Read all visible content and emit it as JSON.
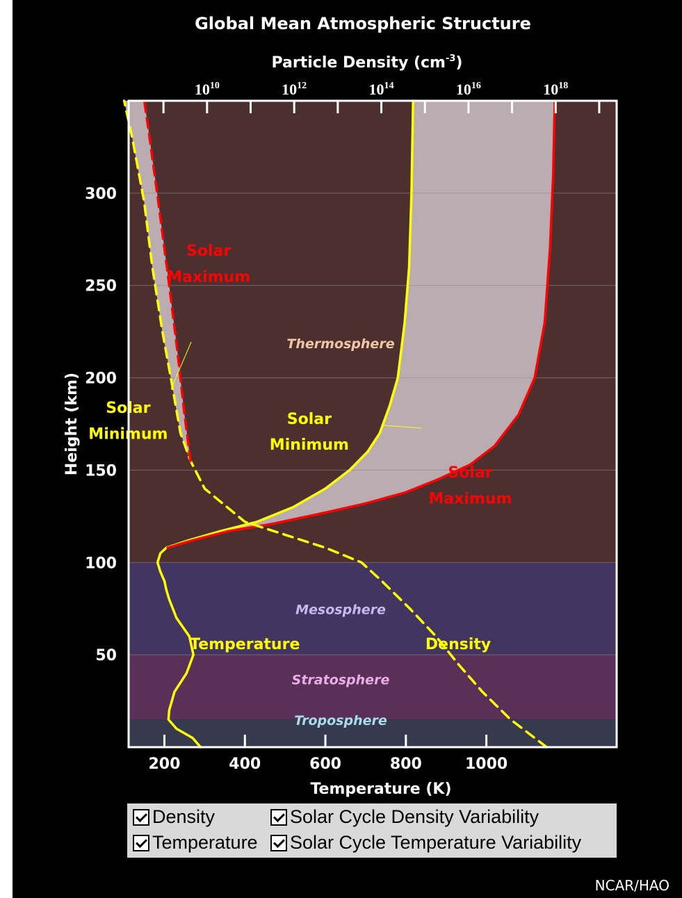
{
  "chart_data": {
    "type": "line",
    "title": "Global Mean Atmospheric Structure",
    "x_top_label": "Particle Density (cm",
    "x_top_label_sup": "-3",
    "x_top_label_end": ")",
    "x_top_ticks": [
      {
        "base": "10",
        "exp": "10",
        "value": 10
      },
      {
        "base": "10",
        "exp": "12",
        "value": 12
      },
      {
        "base": "10",
        "exp": "14",
        "value": 14
      },
      {
        "base": "10",
        "exp": "16",
        "value": 16
      },
      {
        "base": "10",
        "exp": "18",
        "value": 18
      }
    ],
    "x_top_scale": "log",
    "x_top_range_log10": [
      8.2,
      19.4
    ],
    "xlabel": "Temperature (K)",
    "xlim": [
      0,
      1200
    ],
    "x_ticks": [
      200,
      400,
      600,
      800,
      1000
    ],
    "ylabel": "Height (km)",
    "ylim": [
      0,
      350
    ],
    "y_ticks": [
      50,
      100,
      150,
      200,
      250,
      300
    ],
    "gridlines_y": [
      50,
      100,
      150,
      200,
      250,
      300
    ],
    "layers": [
      {
        "name": "Troposphere",
        "from": 0,
        "to": 15,
        "color": "#353a4e",
        "label_color": "#a9dcea",
        "label_at": 12
      },
      {
        "name": "Stratosphere",
        "from": 15,
        "to": 50,
        "color": "#5a2f58",
        "label_color": "#e9aee6",
        "label_at": 34
      },
      {
        "name": "Mesosphere",
        "from": 50,
        "to": 100,
        "color": "#42355f",
        "label_color": "#c9b8f0",
        "label_at": 72
      },
      {
        "name": "Thermosphere",
        "from": 100,
        "to": 350,
        "color": "#4c3030",
        "label_color": "#f1c6a4",
        "label_at": 216
      }
    ],
    "series": [
      {
        "name": "Temperature",
        "color": "#ffff00",
        "style": "solid",
        "points": [
          [
            290,
            0
          ],
          [
            270,
            5
          ],
          [
            230,
            10
          ],
          [
            210,
            15
          ],
          [
            212,
            20
          ],
          [
            225,
            30
          ],
          [
            255,
            40
          ],
          [
            272,
            50
          ],
          [
            262,
            60
          ],
          [
            230,
            70
          ],
          [
            212,
            80
          ],
          [
            205,
            85
          ],
          [
            200,
            90
          ],
          [
            190,
            95
          ],
          [
            183,
            100
          ],
          [
            190,
            105
          ],
          [
            205,
            108
          ]
        ]
      },
      {
        "name": "Solar Minimum",
        "color": "#ffff00",
        "style": "solid",
        "points": [
          [
            205,
            108
          ],
          [
            260,
            112
          ],
          [
            340,
            117
          ],
          [
            430,
            122
          ],
          [
            520,
            130
          ],
          [
            600,
            140
          ],
          [
            660,
            150
          ],
          [
            705,
            160
          ],
          [
            735,
            170
          ],
          [
            760,
            185
          ],
          [
            780,
            200
          ],
          [
            797,
            230
          ],
          [
            808,
            260
          ],
          [
            814,
            300
          ],
          [
            818,
            350
          ]
        ]
      },
      {
        "name": "Solar Maximum",
        "color": "#ff0000",
        "style": "solid",
        "points": [
          [
            208,
            108
          ],
          [
            270,
            112
          ],
          [
            360,
            117
          ],
          [
            470,
            121
          ],
          [
            600,
            127
          ],
          [
            700,
            132
          ],
          [
            800,
            138
          ],
          [
            880,
            145
          ],
          [
            960,
            153
          ],
          [
            1020,
            163
          ],
          [
            1080,
            180
          ],
          [
            1120,
            200
          ],
          [
            1145,
            230
          ],
          [
            1158,
            270
          ],
          [
            1166,
            310
          ],
          [
            1170,
            350
          ]
        ]
      },
      {
        "name": "Density",
        "color": "#ffff00",
        "style": "dashed",
        "points": [
          [
            1150,
            0
          ],
          [
            1060,
            15
          ],
          [
            990,
            30
          ],
          [
            930,
            45
          ],
          [
            875,
            60
          ],
          [
            810,
            75
          ],
          [
            740,
            90
          ],
          [
            690,
            100
          ],
          [
            600,
            108
          ],
          [
            500,
            115
          ],
          [
            400,
            122
          ],
          [
            300,
            140
          ],
          [
            265,
            155
          ],
          [
            240,
            170
          ],
          [
            220,
            195
          ],
          [
            195,
            225
          ],
          [
            170,
            260
          ],
          [
            150,
            295
          ],
          [
            120,
            330
          ],
          [
            100,
            350
          ]
        ]
      },
      {
        "name": "Solar Maximum Density",
        "color": "#ff0000",
        "style": "dashed",
        "points": [
          [
            265,
            155
          ],
          [
            250,
            180
          ],
          [
            232,
            215
          ],
          [
            212,
            250
          ],
          [
            185,
            295
          ],
          [
            160,
            335
          ],
          [
            150,
            350
          ]
        ]
      }
    ],
    "annotations": [
      {
        "text": "Solar",
        "color": "#ff0000",
        "x": 310,
        "y": 266
      },
      {
        "text": "Maximum",
        "color": "#ff0000",
        "x": 310,
        "y": 252
      },
      {
        "text": "Solar",
        "color": "#ffff00",
        "x": 110,
        "y": 181
      },
      {
        "text": "Minimum",
        "color": "#ffff00",
        "x": 110,
        "y": 167
      },
      {
        "text": "Solar",
        "color": "#ffff00",
        "x": 560,
        "y": 175
      },
      {
        "text": "Minimum",
        "color": "#ffff00",
        "x": 560,
        "y": 161
      },
      {
        "text": "Solar",
        "color": "#ff0000",
        "x": 960,
        "y": 146
      },
      {
        "text": "Maximum",
        "color": "#ff0000",
        "x": 960,
        "y": 132
      },
      {
        "text": "Temperature",
        "color": "#ffff00",
        "x": 400,
        "y": 53
      },
      {
        "text": "Density",
        "color": "#ffff00",
        "x": 930,
        "y": 53
      }
    ]
  },
  "controls": {
    "density": "Density",
    "temperature": "Temperature",
    "density_variability": "Solar Cycle Density Variability",
    "temperature_variability": "Solar Cycle Temperature Variability"
  },
  "credit": "NCAR/HAO"
}
